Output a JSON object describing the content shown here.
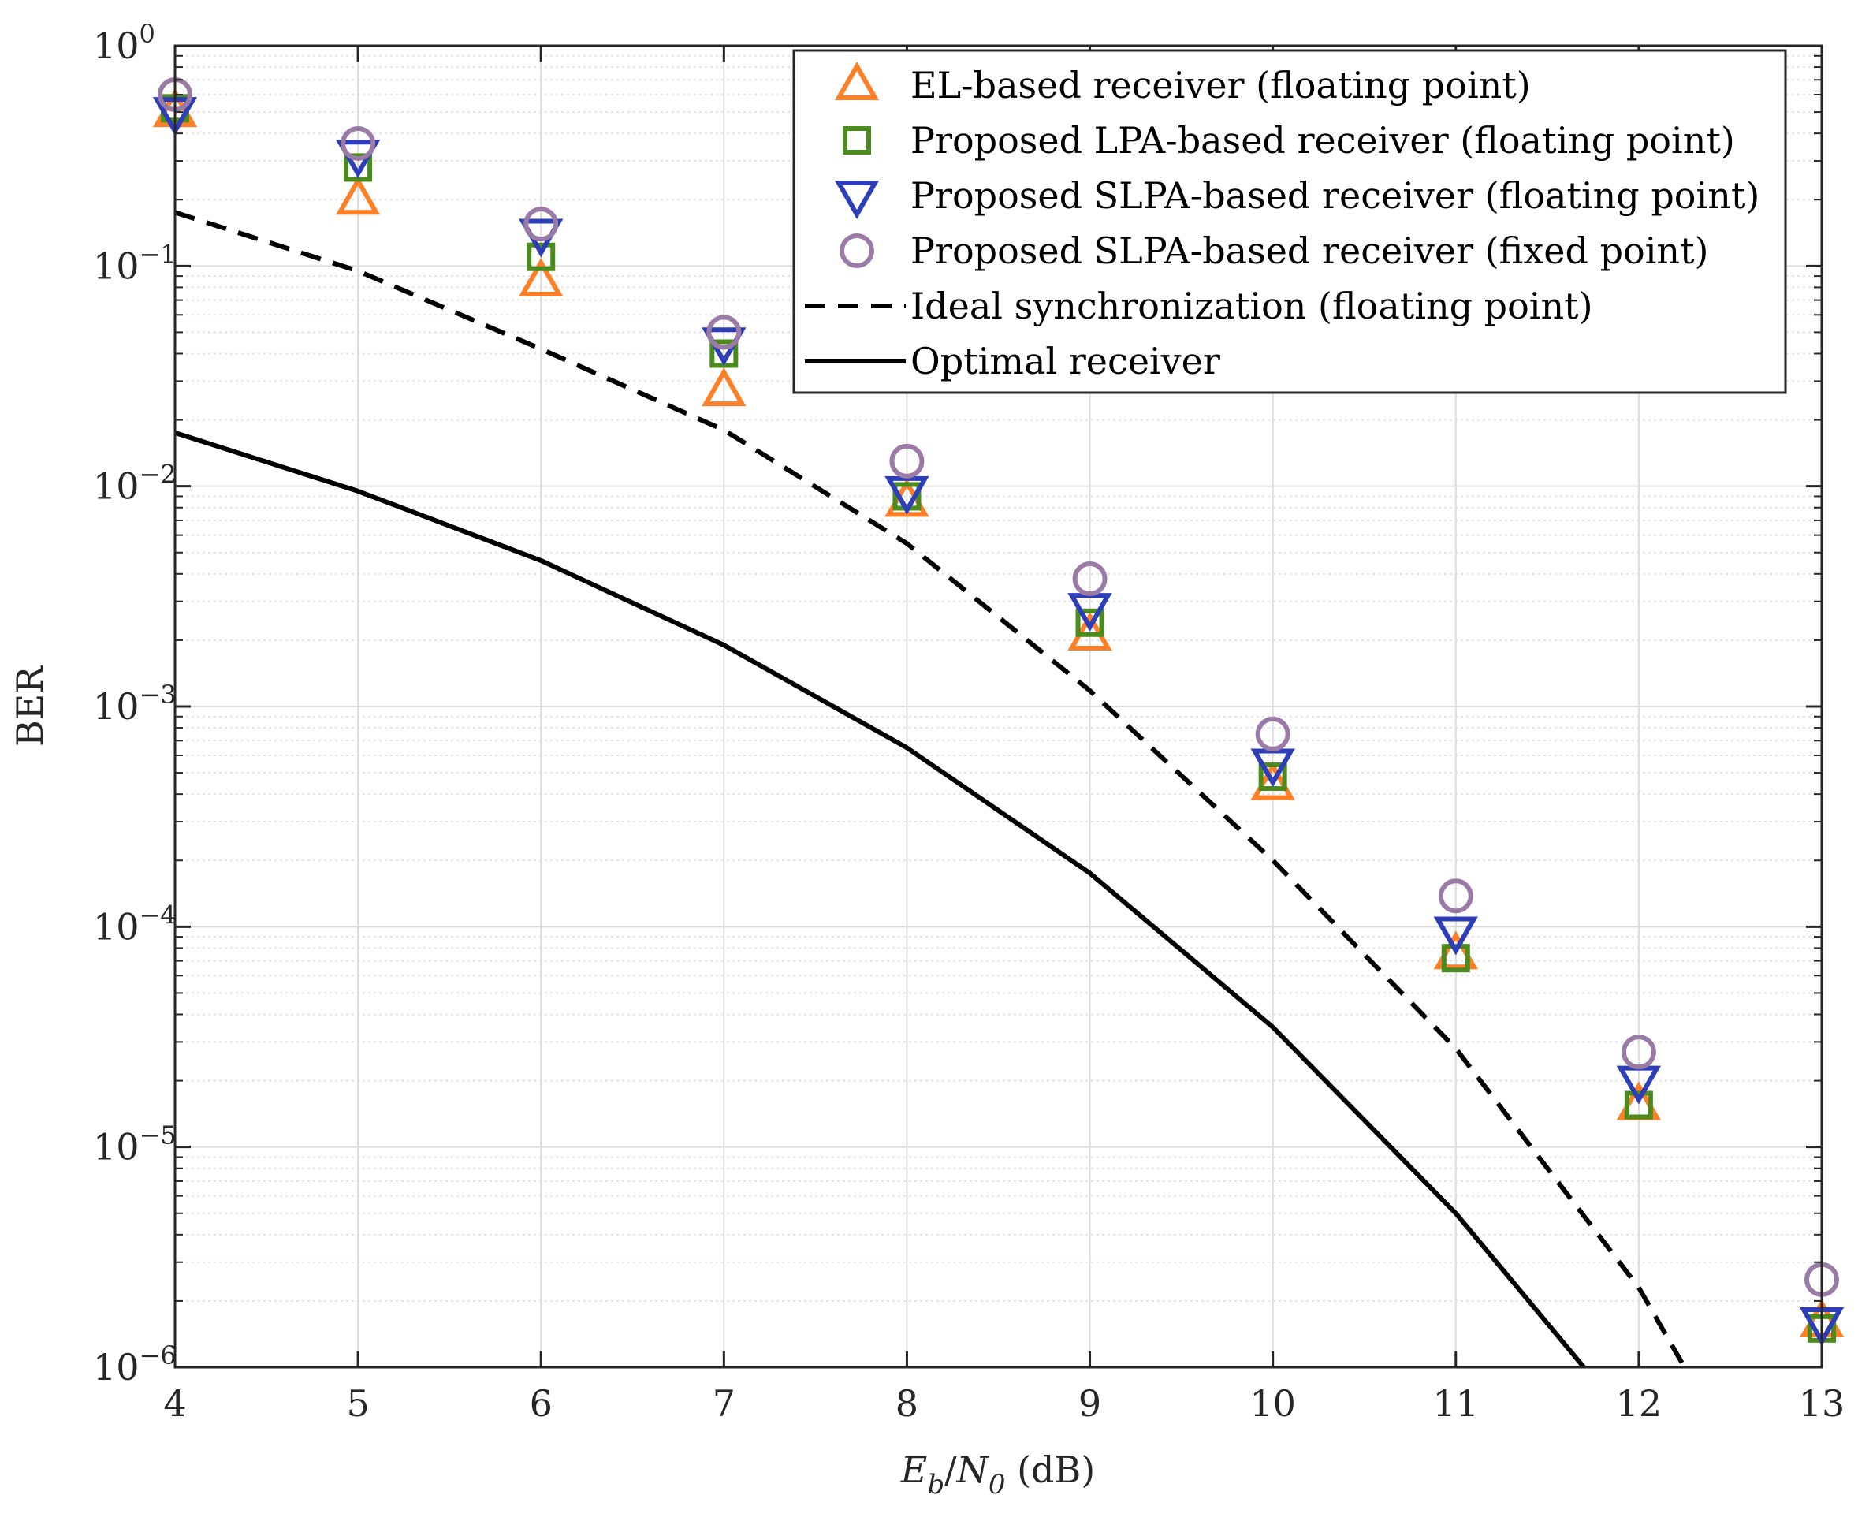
{
  "chart_data": {
    "type": "scatter",
    "title": "",
    "xlabel": {
      "parts": [
        {
          "text": "E",
          "italic": true,
          "sub": false
        },
        {
          "text": "b",
          "italic": true,
          "sub": true
        },
        {
          "text": "/",
          "italic": false,
          "sub": false
        },
        {
          "text": "N",
          "italic": true,
          "sub": false
        },
        {
          "text": "0",
          "italic": true,
          "sub": true
        },
        {
          "text": " (dB)",
          "italic": false,
          "sub": false
        }
      ]
    },
    "ylabel": "BER",
    "xlim": [
      4,
      13
    ],
    "ylim_log10": [
      -6,
      0
    ],
    "yscale": "log",
    "grid": true,
    "legend_position": "top-right",
    "xticks": [
      {
        "value": 4,
        "label": "4"
      },
      {
        "value": 5,
        "label": "5"
      },
      {
        "value": 6,
        "label": "6"
      },
      {
        "value": 7,
        "label": "7"
      },
      {
        "value": 8,
        "label": "8"
      },
      {
        "value": 9,
        "label": "9"
      },
      {
        "value": 10,
        "label": "10"
      },
      {
        "value": 11,
        "label": "11"
      },
      {
        "value": 12,
        "label": "12"
      },
      {
        "value": 13,
        "label": "13"
      }
    ],
    "yticks": [
      {
        "exp": 0,
        "base": "10",
        "sup": "0"
      },
      {
        "exp": -1,
        "base": "10",
        "sup": "−1"
      },
      {
        "exp": -2,
        "base": "10",
        "sup": "−2"
      },
      {
        "exp": -3,
        "base": "10",
        "sup": "−3"
      },
      {
        "exp": -4,
        "base": "10",
        "sup": "−4"
      },
      {
        "exp": -5,
        "base": "10",
        "sup": "−5"
      },
      {
        "exp": -6,
        "base": "10",
        "sup": "−6"
      }
    ],
    "series": [
      {
        "name": "EL-based receiver  (floating point)",
        "kind": "marker",
        "marker": "triangle-up",
        "color": "#FF7F27",
        "x": [
          4,
          5,
          6,
          7,
          8,
          9,
          10,
          11,
          12,
          13
        ],
        "y": [
          0.5,
          0.2,
          0.085,
          0.027,
          0.0085,
          0.0021,
          0.00044,
          7.5e-05,
          1.55e-05,
          1.6e-06
        ]
      },
      {
        "name": "Proposed LPA-based receiver (floating point)",
        "kind": "marker",
        "marker": "square",
        "color": "#4B8B1E",
        "x": [
          4,
          5,
          6,
          7,
          8,
          9,
          10,
          11,
          12,
          13
        ],
        "y": [
          0.52,
          0.28,
          0.11,
          0.04,
          0.009,
          0.0024,
          0.00048,
          7.2e-05,
          1.55e-05,
          1.5e-06
        ]
      },
      {
        "name": "Proposed SLPA-based receiver (floating point)",
        "kind": "marker",
        "marker": "triangle-down",
        "color": "#2E3EB8",
        "x": [
          4,
          5,
          6,
          7,
          8,
          9,
          10,
          11,
          12,
          13
        ],
        "y": [
          0.5,
          0.32,
          0.14,
          0.045,
          0.0095,
          0.0028,
          0.00055,
          9.5e-05,
          2e-05,
          1.6e-06
        ]
      },
      {
        "name": "Proposed SLPA-based receiver (fixed point)",
        "kind": "marker",
        "marker": "circle",
        "color": "#9A7BA5",
        "x": [
          4,
          5,
          6,
          7,
          8,
          9,
          10,
          11,
          12,
          13
        ],
        "y": [
          0.6,
          0.36,
          0.155,
          0.05,
          0.013,
          0.0038,
          0.00075,
          0.000138,
          2.7e-05,
          2.5e-06
        ]
      },
      {
        "name": "Ideal synchronization  (floating point)",
        "kind": "line",
        "dash": "dashed",
        "color": "#000000",
        "x": [
          4,
          5,
          6,
          7,
          8,
          9,
          10,
          11,
          12,
          12.25
        ],
        "y": [
          0.175,
          0.095,
          0.042,
          0.018,
          0.0055,
          0.00118,
          0.0002,
          2.8e-05,
          2.3e-06,
          1e-06
        ]
      },
      {
        "name": "Optimal receiver",
        "kind": "line",
        "dash": "solid",
        "color": "#000000",
        "x": [
          4,
          5,
          6,
          7,
          8,
          9,
          10,
          11,
          11.7
        ],
        "y": [
          0.0175,
          0.0095,
          0.0046,
          0.0019,
          0.00065,
          0.000175,
          3.5e-05,
          5e-06,
          1e-06
        ]
      }
    ]
  }
}
